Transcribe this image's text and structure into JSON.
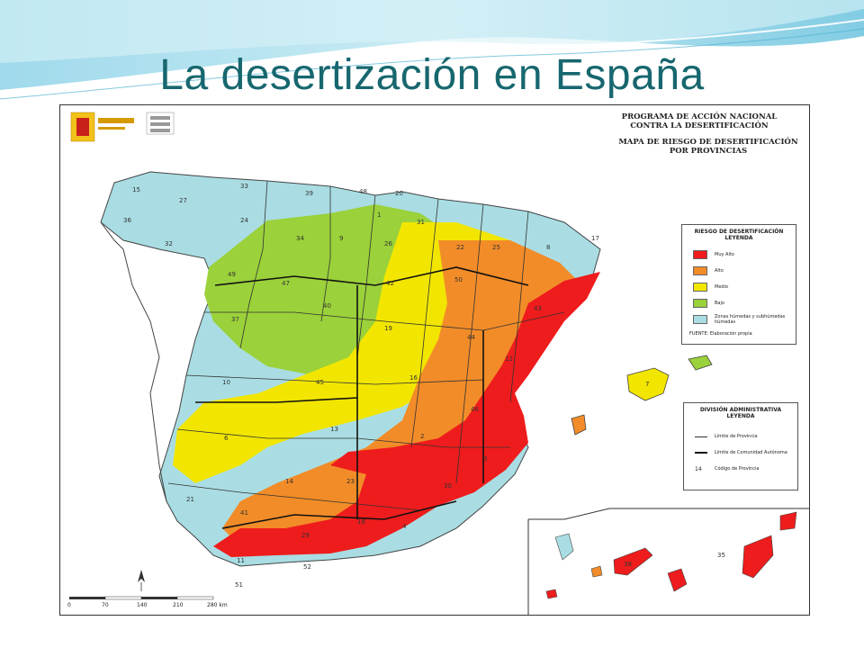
{
  "slide": {
    "title": "La desertización en España"
  },
  "map": {
    "heading_lines": [
      "PROGRAMA DE ACCIÓN NACIONAL",
      "CONTRA LA DESERTIFICACIÓN"
    ],
    "subheading_lines": [
      "MAPA DE RIESGO DE DESERTIFICACIÓN",
      "POR PROVINCIAS"
    ],
    "risk_legend": {
      "title_lines": [
        "RIESGO DE DESERTIFICACIÓN",
        "LEYENDA"
      ],
      "items": [
        {
          "label": "Muy Alto",
          "color": "#ee1c1c"
        },
        {
          "label": "Alto",
          "color": "#f28c28"
        },
        {
          "label": "Medio",
          "color": "#f2e600"
        },
        {
          "label": "Bajo",
          "color": "#9bd13a"
        },
        {
          "label": "Zonas húmedas y subhúmedas húmedas",
          "color": "#a9dde3"
        }
      ],
      "footnote": "FUENTE: Elaboración propia"
    },
    "division_legend": {
      "title_lines": [
        "DIVISIÓN ADMINISTRATIVA",
        "LEYENDA"
      ],
      "items": [
        {
          "symbol": "thin-line",
          "label": "Límite de Provincia"
        },
        {
          "symbol": "thick-line",
          "label": "Límite de Comunidad Autónoma"
        },
        {
          "symbol": "14",
          "label": "Código de Provincia"
        }
      ]
    },
    "scale_bar": {
      "ticks": [
        "0",
        "70",
        "140",
        "210",
        "280 km"
      ]
    },
    "province_codes": [
      "15",
      "27",
      "33",
      "39",
      "48",
      "20",
      "36",
      "32",
      "24",
      "34",
      "9",
      "1",
      "31",
      "26",
      "25",
      "22",
      "8",
      "17",
      "49",
      "47",
      "42",
      "50",
      "43",
      "37",
      "40",
      "19",
      "44",
      "12",
      "10",
      "45",
      "16",
      "46",
      "7",
      "6",
      "13",
      "2",
      "3",
      "14",
      "23",
      "30",
      "21",
      "41",
      "18",
      "4",
      "29",
      "11",
      "51",
      "35",
      "38",
      "52"
    ],
    "colors": {
      "muy_alto": "#ee1c1c",
      "alto": "#f28c28",
      "medio": "#f2e600",
      "bajo": "#9bd13a",
      "humedo": "#a9dde3",
      "portugal": "#ffffff",
      "title_color": "#17676f"
    }
  }
}
